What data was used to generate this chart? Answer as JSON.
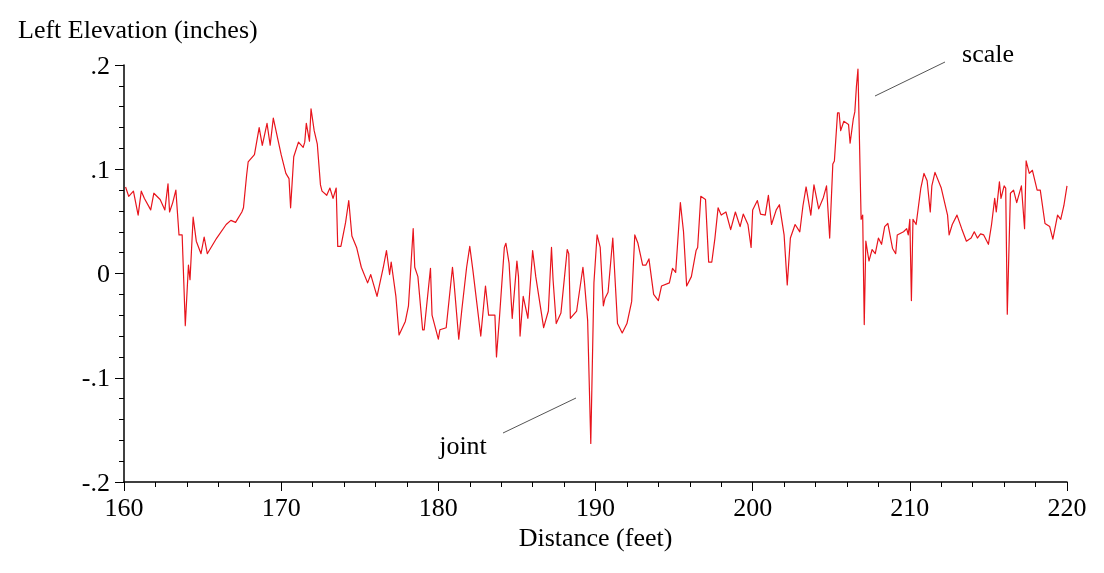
{
  "chart_data": {
    "type": "line",
    "xlabel": "Distance (feet)",
    "ylabel": "Left Elevation (inches)",
    "xlim": [
      160,
      220
    ],
    "xticks": [
      160,
      170,
      180,
      190,
      200,
      210,
      220
    ],
    "ylim": [
      -0.2,
      0.2
    ],
    "yticks": [
      {
        "value": -0.2,
        "label": "-.2"
      },
      {
        "value": -0.1,
        "label": "-.1"
      },
      {
        "value": 0,
        "label": "0"
      },
      {
        "value": 0.1,
        "label": ".1"
      },
      {
        "value": 0.2,
        "label": ".2"
      }
    ],
    "grid": false,
    "marker": "none",
    "line_style": "solid",
    "annotations": [
      "joint",
      "scale"
    ],
    "series": [
      {
        "color": "#e8141c",
        "x": [
          160.1,
          160.3,
          160.6,
          160.9,
          161.1,
          161.3,
          161.7,
          161.9,
          162.3,
          162.6,
          162.8,
          162.9,
          163.1,
          163.3,
          163.5,
          163.7,
          163.9,
          164.1,
          164.2,
          164.4,
          164.6,
          164.9,
          165.1,
          165.3,
          165.9,
          166.5,
          166.8,
          167.1,
          167.5,
          167.6,
          167.8,
          167.9,
          168.3,
          168.6,
          168.8,
          169.1,
          169.3,
          169.5,
          169.8,
          170.0,
          170.3,
          170.5,
          170.6,
          170.8,
          171.1,
          171.4,
          171.5,
          171.6,
          171.8,
          171.9,
          172.1,
          172.3,
          172.5,
          172.6,
          172.9,
          173.1,
          173.3,
          173.5,
          173.6,
          173.8,
          174.1,
          174.3,
          174.5,
          174.8,
          175.1,
          175.5,
          175.7,
          176.1,
          176.5,
          176.7,
          176.9,
          177.0,
          177.3,
          177.5,
          177.9,
          178.1,
          178.4,
          178.5,
          178.7,
          179.0,
          179.1,
          179.5,
          179.6,
          180.0,
          180.1,
          180.5,
          180.9,
          181.0,
          181.3,
          181.5,
          181.8,
          182.0,
          182.2,
          182.7,
          183.0,
          183.2,
          183.6,
          183.7,
          183.9,
          184.2,
          184.3,
          184.5,
          184.7,
          185.0,
          185.1,
          185.2,
          185.4,
          185.7,
          186.0,
          186.2,
          186.7,
          187.0,
          187.2,
          187.3,
          187.5,
          187.8,
          188.2,
          188.3,
          188.4,
          188.8,
          189.2,
          189.3,
          189.5,
          189.7,
          189.9,
          190.1,
          190.3,
          190.5,
          190.6,
          190.8,
          191.1,
          191.4,
          191.7,
          192.0,
          192.3,
          192.5,
          192.7,
          193.0,
          193.2,
          193.4,
          193.7,
          194.0,
          194.2,
          194.7,
          194.9,
          195.1,
          195.4,
          195.6,
          195.8,
          196.1,
          196.4,
          196.5,
          196.7,
          197.0,
          197.2,
          197.4,
          197.6,
          197.8,
          198.0,
          198.3,
          198.6,
          198.9,
          199.2,
          199.4,
          199.7,
          199.9,
          200.0,
          200.3,
          200.5,
          200.8,
          201.0,
          201.2,
          201.5,
          201.7,
          202.0,
          202.2,
          202.4,
          202.7,
          203.0,
          203.2,
          203.4,
          203.7,
          203.9,
          204.2,
          204.5,
          204.7,
          204.9,
          205.1,
          205.2,
          205.4,
          205.5,
          205.6,
          205.8,
          206.1,
          206.2,
          206.4,
          206.5,
          206.6,
          206.7,
          206.9,
          207.0,
          207.1,
          207.2,
          207.4,
          207.6,
          207.8,
          208.0,
          208.2,
          208.4,
          208.6,
          208.9,
          209.1,
          209.2,
          209.6,
          209.8,
          209.9,
          210.0,
          210.1,
          210.2,
          210.4,
          210.7,
          210.9,
          211.1,
          211.3,
          211.4,
          211.6,
          212.0,
          212.4,
          212.5,
          212.7,
          213.0,
          213.3,
          213.6,
          213.9,
          214.1,
          214.3,
          214.5,
          214.7,
          215.0,
          215.2,
          215.4,
          215.5,
          215.7,
          215.8,
          216.0,
          216.1,
          216.2,
          216.4,
          216.6,
          216.8,
          217.1,
          217.3,
          217.4,
          217.6,
          217.8,
          218.1,
          218.3,
          218.6,
          218.9,
          219.1,
          219.4,
          219.6,
          219.8,
          220.0
        ],
        "values": [
          0.083,
          0.074,
          0.079,
          0.056,
          0.079,
          0.072,
          0.061,
          0.077,
          0.071,
          0.061,
          0.086,
          0.059,
          0.068,
          0.08,
          0.037,
          0.037,
          -0.05,
          0.008,
          -0.006,
          0.054,
          0.031,
          0.019,
          0.035,
          0.019,
          0.034,
          0.047,
          0.051,
          0.049,
          0.059,
          0.063,
          0.094,
          0.107,
          0.114,
          0.14,
          0.123,
          0.144,
          0.123,
          0.149,
          0.128,
          0.114,
          0.096,
          0.091,
          0.063,
          0.112,
          0.126,
          0.121,
          0.126,
          0.144,
          0.127,
          0.158,
          0.137,
          0.124,
          0.085,
          0.079,
          0.075,
          0.082,
          0.072,
          0.082,
          0.026,
          0.026,
          0.049,
          0.07,
          0.036,
          0.025,
          0.006,
          -0.009,
          -0.001,
          -0.022,
          0.006,
          0.022,
          -0.001,
          0.011,
          -0.022,
          -0.059,
          -0.046,
          -0.031,
          0.043,
          0.006,
          -0.003,
          -0.054,
          -0.054,
          0.005,
          -0.04,
          -0.063,
          -0.054,
          -0.052,
          0.006,
          -0.009,
          -0.063,
          -0.034,
          0.006,
          0.026,
          0.003,
          -0.06,
          -0.012,
          -0.04,
          -0.04,
          -0.08,
          -0.04,
          0.025,
          0.029,
          0.01,
          -0.043,
          0.012,
          -0.003,
          -0.06,
          -0.022,
          -0.043,
          0.022,
          -0.003,
          -0.052,
          -0.036,
          0.025,
          -0.006,
          -0.048,
          -0.038,
          0.023,
          0.019,
          -0.043,
          -0.036,
          0.006,
          -0.009,
          -0.045,
          -0.163,
          -0.009,
          0.037,
          0.025,
          -0.031,
          -0.024,
          -0.018,
          0.034,
          -0.048,
          -0.057,
          -0.048,
          -0.027,
          0.037,
          0.029,
          0.008,
          0.008,
          0.014,
          -0.02,
          -0.026,
          -0.012,
          -0.009,
          0.005,
          0.001,
          0.068,
          0.04,
          -0.012,
          -0.003,
          0.022,
          0.025,
          0.074,
          0.071,
          0.011,
          0.011,
          0.034,
          0.063,
          0.056,
          0.059,
          0.042,
          0.059,
          0.045,
          0.057,
          0.047,
          0.025,
          0.061,
          0.07,
          0.057,
          0.056,
          0.075,
          0.047,
          0.061,
          0.066,
          0.037,
          -0.011,
          0.034,
          0.047,
          0.04,
          0.065,
          0.083,
          0.056,
          0.085,
          0.062,
          0.073,
          0.084,
          0.034,
          0.105,
          0.108,
          0.154,
          0.154,
          0.137,
          0.146,
          0.143,
          0.125,
          0.148,
          0.155,
          0.179,
          0.196,
          0.052,
          0.056,
          -0.049,
          0.031,
          0.012,
          0.023,
          0.019,
          0.034,
          0.028,
          0.045,
          0.048,
          0.024,
          0.019,
          0.037,
          0.04,
          0.043,
          0.037,
          0.052,
          -0.026,
          0.052,
          0.047,
          0.082,
          0.096,
          0.089,
          0.059,
          0.084,
          0.097,
          0.082,
          0.056,
          0.037,
          0.047,
          0.056,
          0.043,
          0.031,
          0.034,
          0.04,
          0.034,
          0.038,
          0.037,
          0.028,
          0.047,
          0.072,
          0.059,
          0.088,
          0.072,
          0.084,
          0.082,
          -0.039,
          0.077,
          0.08,
          0.068,
          0.084,
          0.043,
          0.108,
          0.096,
          0.099,
          0.08,
          0.08,
          0.048,
          0.045,
          0.033,
          0.056,
          0.052,
          0.065,
          0.084
        ]
      }
    ]
  }
}
